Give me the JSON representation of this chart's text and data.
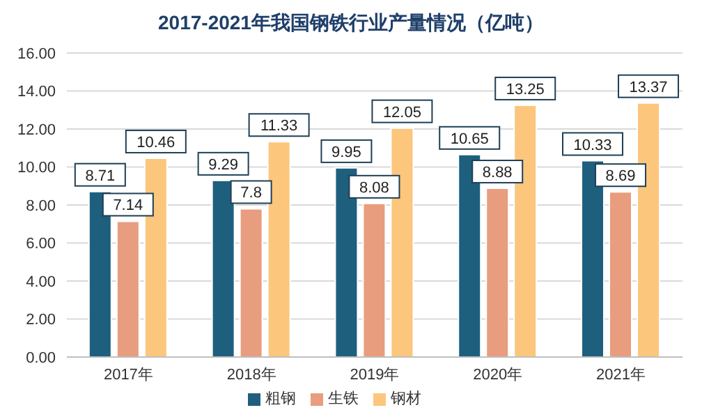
{
  "chart_data": {
    "type": "bar",
    "title": "2017-2021年我国钢铁行业产量情况（亿吨）",
    "categories": [
      "2017年",
      "2018年",
      "2019年",
      "2020年",
      "2021年"
    ],
    "series": [
      {
        "name": "粗钢",
        "color": "#1f5f7e",
        "values": [
          8.71,
          9.29,
          9.95,
          10.65,
          10.33
        ]
      },
      {
        "name": "生铁",
        "color": "#e89d7e",
        "values": [
          7.14,
          7.8,
          8.08,
          8.88,
          8.69
        ]
      },
      {
        "name": "钢材",
        "color": "#fcc67c",
        "values": [
          10.46,
          11.33,
          12.05,
          13.25,
          13.37
        ]
      }
    ],
    "ylim": [
      0,
      16
    ],
    "yticks": [
      {
        "value": 0,
        "label": "0.00"
      },
      {
        "value": 2,
        "label": "2.00"
      },
      {
        "value": 4,
        "label": "4.00"
      },
      {
        "value": 6,
        "label": "6.00"
      },
      {
        "value": 8,
        "label": "8.00"
      },
      {
        "value": 10,
        "label": "10.00"
      },
      {
        "value": 12,
        "label": "12.00"
      },
      {
        "value": 14,
        "label": "14.00"
      },
      {
        "value": 16,
        "label": "16.00"
      }
    ],
    "grid": "y",
    "legend": "bottom",
    "data_labels": true
  }
}
